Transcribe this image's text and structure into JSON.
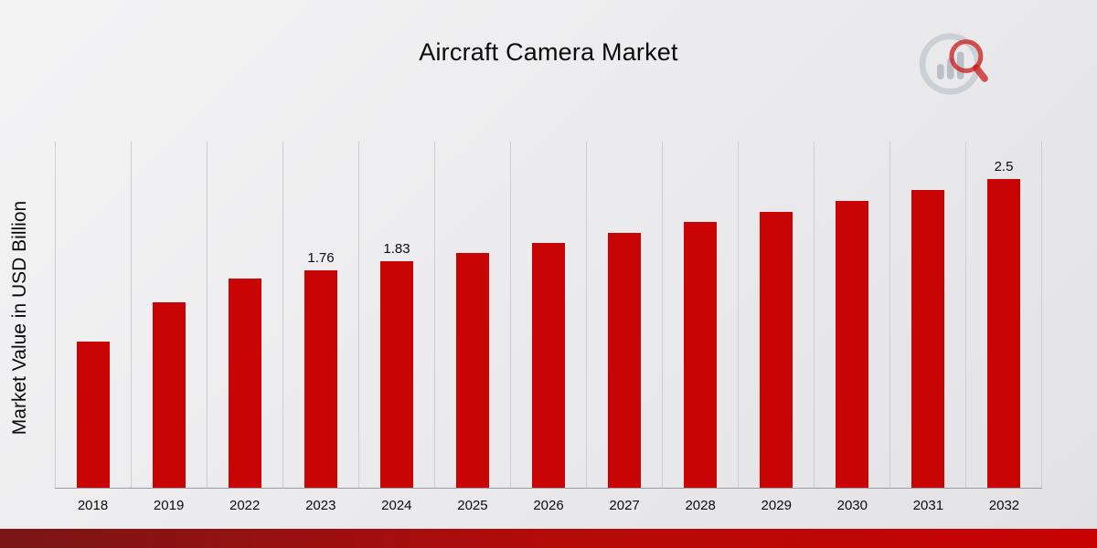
{
  "header": {
    "title": "Aircraft Camera Market"
  },
  "branding": {
    "logo_icon": "bar-chart-magnifier-logo"
  },
  "chart_data": {
    "type": "bar",
    "title": "Aircraft Camera Market",
    "xlabel": "",
    "ylabel": "Market Value in USD Billion",
    "categories": [
      "2018",
      "2019",
      "2022",
      "2023",
      "2024",
      "2025",
      "2026",
      "2027",
      "2028",
      "2029",
      "2030",
      "2031",
      "2032"
    ],
    "values": [
      1.18,
      1.5,
      1.69,
      1.76,
      1.83,
      1.9,
      1.98,
      2.06,
      2.15,
      2.23,
      2.32,
      2.41,
      2.5
    ],
    "data_labels": [
      "",
      "",
      "",
      "1.76",
      "1.83",
      "",
      "",
      "",
      "",
      "",
      "",
      "",
      "2.5"
    ],
    "ylim": [
      0,
      2.8
    ],
    "grid": "vertical-only",
    "legend": "none",
    "bar_color": "#C90404",
    "gridline_color": "#cdcdd2",
    "footer_gradient": [
      "#7A1616",
      "#B40A0A",
      "#C70202"
    ]
  }
}
